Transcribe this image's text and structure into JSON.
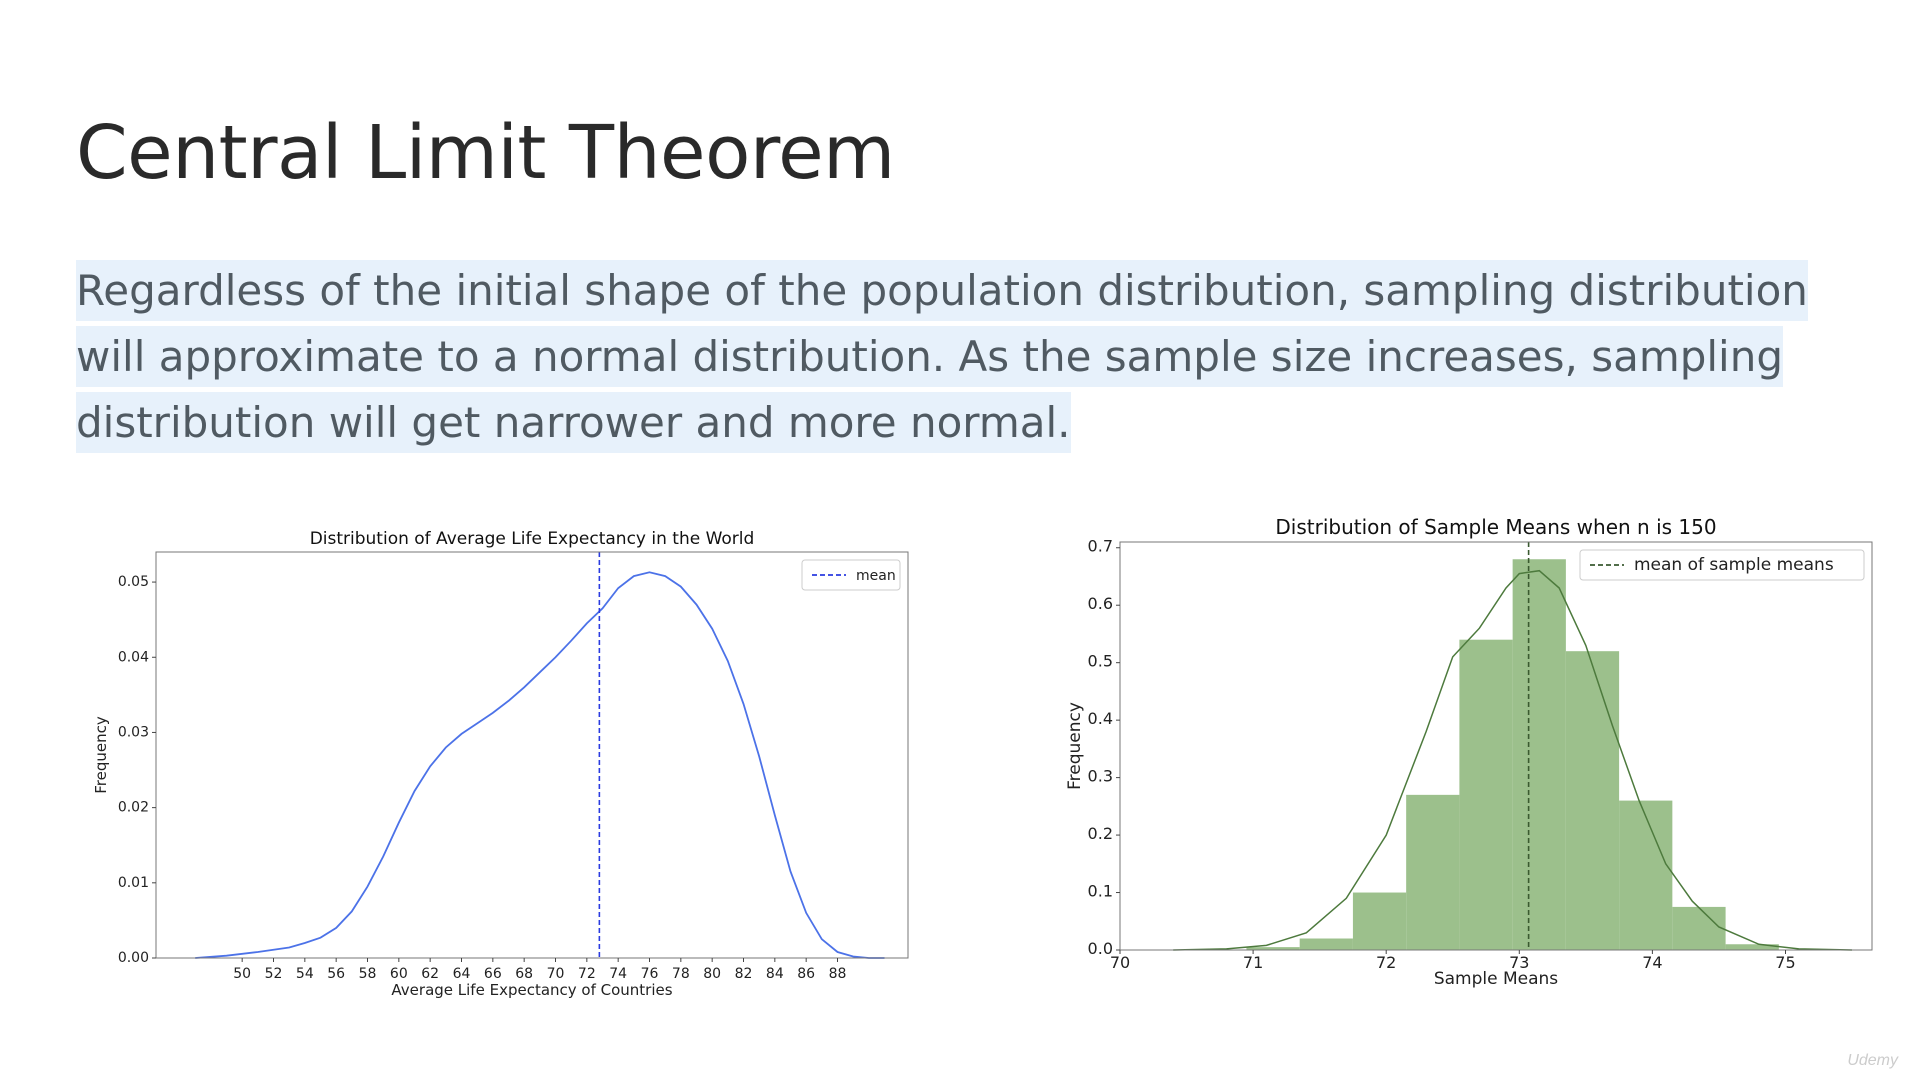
{
  "slide": {
    "title": "Central Limit Theorem",
    "body_lines": [
      "Regardless of the initial shape of the population distribution, sampling distribution",
      "will approximate to a normal distribution. As the sample size increases, sampling",
      "distribution will get narrower and more normal."
    ],
    "highlight_color": "#e7f1fb"
  },
  "watermark": "Udemy",
  "chart_data": [
    {
      "type": "line",
      "title": "Distribution of Average Life Expectancy in the World",
      "xlabel": "Average Life Expectancy of Countries",
      "ylabel": "Frequency",
      "xlim": [
        44.5,
        92.5
      ],
      "ylim": [
        0,
        0.054
      ],
      "xticks": [
        50,
        52,
        54,
        56,
        58,
        60,
        62,
        64,
        66,
        68,
        70,
        72,
        74,
        76,
        78,
        80,
        82,
        84,
        86,
        88
      ],
      "yticks": [
        "0.00",
        "0.01",
        "0.02",
        "0.03",
        "0.04",
        "0.05"
      ],
      "yticks_values": [
        0,
        0.01,
        0.02,
        0.03,
        0.04,
        0.05
      ],
      "series": [
        {
          "kind": "kde",
          "color": "#4c72e8",
          "x": [
            47,
            49,
            51,
            53,
            54,
            55,
            56,
            57,
            58,
            59,
            60,
            61,
            62,
            63,
            64,
            65,
            66,
            67,
            68,
            69,
            70,
            71,
            72,
            73,
            74,
            75,
            76,
            77,
            78,
            79,
            80,
            81,
            82,
            83,
            84,
            85,
            86,
            87,
            88,
            89,
            90,
            91
          ],
          "y": [
            0.0,
            0.0003,
            0.0008,
            0.0014,
            0.002,
            0.0027,
            0.004,
            0.0062,
            0.0095,
            0.0135,
            0.018,
            0.0222,
            0.0255,
            0.028,
            0.0298,
            0.0312,
            0.0326,
            0.0342,
            0.036,
            0.038,
            0.04,
            0.0422,
            0.0445,
            0.0465,
            0.0492,
            0.0508,
            0.0513,
            0.0508,
            0.0494,
            0.047,
            0.0438,
            0.0395,
            0.0338,
            0.0268,
            0.019,
            0.0115,
            0.006,
            0.0025,
            0.0008,
            0.0002,
            0.0,
            0.0
          ]
        }
      ],
      "mean_line": {
        "x": 72.8,
        "label": "mean",
        "color": "#2a3be0"
      },
      "legend": "top-right",
      "grid": false
    },
    {
      "type": "bar",
      "title": "Distribution of Sample Means when n is 150",
      "xlabel": "Sample Means",
      "ylabel": "Frequency",
      "xlim": [
        70,
        75.65
      ],
      "ylim": [
        0,
        0.71
      ],
      "xticks": [
        70,
        71,
        72,
        73,
        74,
        75
      ],
      "yticks": [
        "0.0",
        "0.1",
        "0.2",
        "0.3",
        "0.4",
        "0.5",
        "0.6",
        "0.7"
      ],
      "yticks_values": [
        0,
        0.1,
        0.2,
        0.3,
        0.4,
        0.5,
        0.6,
        0.7
      ],
      "bar_color": "#9cc08c",
      "bins": [
        {
          "x0": 70.95,
          "x1": 71.35,
          "value": 0.005
        },
        {
          "x0": 71.35,
          "x1": 71.75,
          "value": 0.02
        },
        {
          "x0": 71.75,
          "x1": 72.15,
          "value": 0.1
        },
        {
          "x0": 72.15,
          "x1": 72.55,
          "value": 0.27
        },
        {
          "x0": 72.55,
          "x1": 72.95,
          "value": 0.54
        },
        {
          "x0": 72.95,
          "x1": 73.35,
          "value": 0.68
        },
        {
          "x0": 73.35,
          "x1": 73.75,
          "value": 0.52
        },
        {
          "x0": 73.75,
          "x1": 74.15,
          "value": 0.26
        },
        {
          "x0": 74.15,
          "x1": 74.55,
          "value": 0.075
        },
        {
          "x0": 74.55,
          "x1": 74.95,
          "value": 0.01
        }
      ],
      "kde": {
        "color": "#4d7a3d",
        "x": [
          70.4,
          70.8,
          71.1,
          71.4,
          71.7,
          72.0,
          72.3,
          72.5,
          72.7,
          72.9,
          73.0,
          73.15,
          73.3,
          73.5,
          73.7,
          73.9,
          74.1,
          74.3,
          74.5,
          74.8,
          75.1,
          75.5
        ],
        "y": [
          0.0,
          0.002,
          0.008,
          0.03,
          0.09,
          0.2,
          0.38,
          0.51,
          0.56,
          0.63,
          0.655,
          0.66,
          0.63,
          0.53,
          0.39,
          0.26,
          0.15,
          0.085,
          0.04,
          0.01,
          0.002,
          0.0
        ]
      },
      "mean_line": {
        "x": 73.07,
        "label": "mean of sample means",
        "color": "#3a5a30"
      },
      "legend": "top-right",
      "grid": false
    }
  ]
}
